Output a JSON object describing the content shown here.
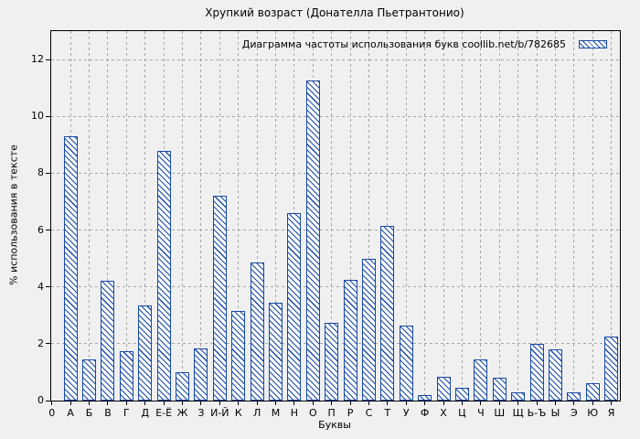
{
  "page": {
    "background": "#f0f0f0"
  },
  "chart_data": {
    "type": "bar",
    "title": "Хрупкий возраст (Донателла Пьетрантонио)",
    "legend_label": "Диаграмма частоты использования букв coollib.net/b/782685",
    "legend_position": "top-right",
    "xlabel": "Буквы",
    "ylabel": "% использования в тексте",
    "origin_tick_label": "0",
    "categories": [
      "А",
      "Б",
      "В",
      "Г",
      "Д",
      "Е-Ё",
      "Ж",
      "З",
      "И-Й",
      "К",
      "Л",
      "М",
      "Н",
      "О",
      "П",
      "Р",
      "С",
      "Т",
      "У",
      "Ф",
      "Х",
      "Ц",
      "Ч",
      "Ш",
      "Щ",
      "Ь-Ъ",
      "Ы",
      "Э",
      "Ю",
      "Я"
    ],
    "values": [
      9.3,
      1.45,
      4.2,
      1.75,
      3.35,
      8.8,
      1.0,
      1.85,
      7.2,
      3.15,
      4.85,
      3.45,
      6.6,
      11.25,
      2.75,
      4.25,
      5.0,
      6.15,
      2.65,
      0.2,
      0.85,
      0.45,
      1.45,
      0.8,
      0.3,
      2.0,
      1.8,
      0.3,
      0.6,
      2.25
    ],
    "yticks": [
      0,
      2,
      4,
      6,
      8,
      10,
      12
    ],
    "ylim": [
      0,
      13
    ],
    "grid": true,
    "bar_color": "#1648a5",
    "grid_color": "#a8a8a8",
    "bar_fill": "hatched-diagonal"
  }
}
